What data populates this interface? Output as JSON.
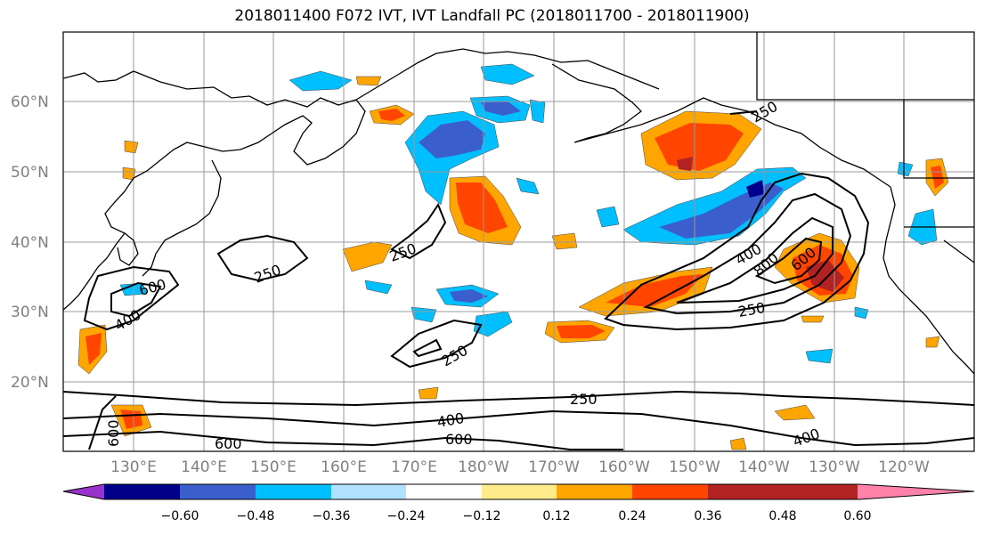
{
  "title": "2018011400 F072 IVT, IVT Landfall PC (2018011700 - 2018011900)",
  "lat_labels": [
    "60°N",
    "50°N",
    "40°N",
    "30°N",
    "20°N"
  ],
  "lon_labels": [
    "130°E",
    "140°E",
    "150°E",
    "160°E",
    "170°E",
    "180°W",
    "170°W",
    "160°W",
    "150°W",
    "140°W",
    "130°W",
    "120°W"
  ],
  "contour_labels": [
    "250",
    "250",
    "250",
    "250",
    "250",
    "250",
    "400",
    "400",
    "400",
    "400",
    "600",
    "600",
    "600",
    "600",
    "600",
    "800",
    "250"
  ],
  "colorbar": {
    "colors": [
      "#9932cc",
      "#00008b",
      "#3a5fcd",
      "#00bfff",
      "#b0e2ff",
      "#ffffff",
      "#ffec8b",
      "#ffa500",
      "#ff4500",
      "#b22222",
      "#ff82ab"
    ],
    "tick_labels": [
      "−0.60",
      "−0.48",
      "−0.36",
      "−0.24",
      "−0.12",
      "0.12",
      "0.24",
      "0.36",
      "0.48",
      "0.60"
    ]
  }
}
